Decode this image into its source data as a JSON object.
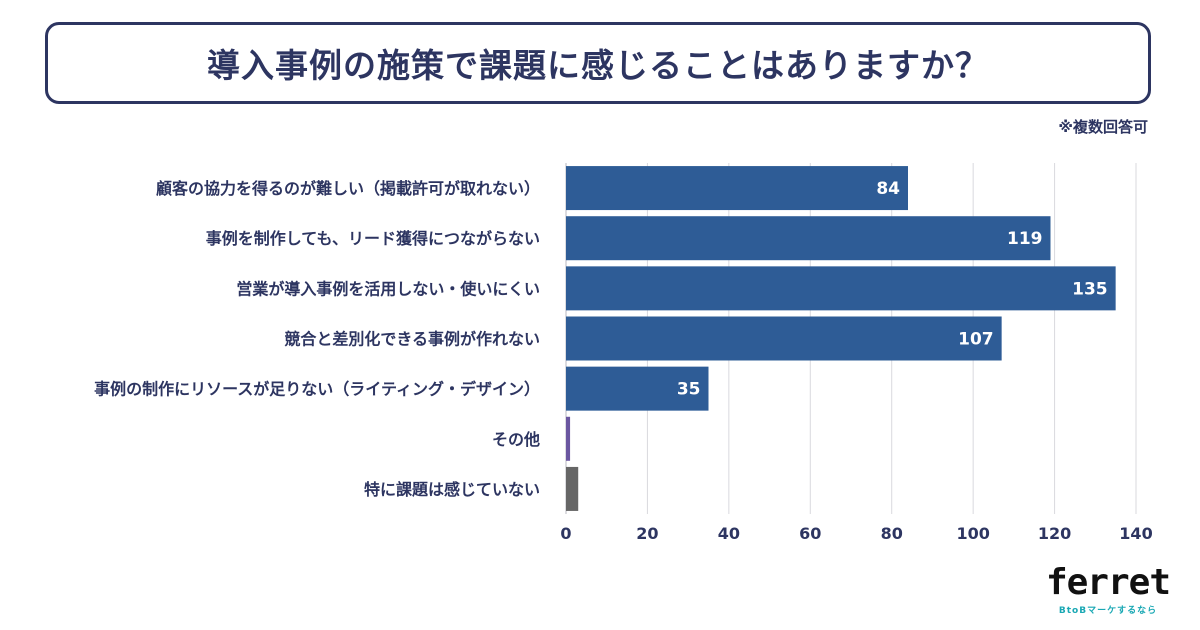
{
  "title": "導入事例の施策で課題に感じることはありますか？",
  "note": "※複数回答可",
  "chart_data": {
    "type": "bar",
    "orientation": "horizontal",
    "categories": [
      "顧客の協力を得るのが難しい（掲載許可が取れない）",
      "事例を制作しても、リード獲得につながらない",
      "営業が導入事例を活用しない・使いにくい",
      "競合と差別化できる事例が作れない",
      "事例の制作にリソースが足りない（ライティング・デザイン）",
      "その他",
      "特に課題は感じていない"
    ],
    "values": [
      84,
      119,
      135,
      107,
      35,
      1,
      3
    ],
    "value_labels": [
      "84",
      "119",
      "135",
      "107",
      "35",
      "",
      ""
    ],
    "colors": [
      "#2e5c96",
      "#2e5c96",
      "#2e5c96",
      "#2e5c96",
      "#2e5c96",
      "#6a56a0",
      "#666666"
    ],
    "xlim": [
      0,
      140
    ],
    "xticks": [
      0,
      20,
      40,
      60,
      80,
      100,
      120,
      140
    ],
    "grid": true
  },
  "logo": {
    "main": "ferret",
    "sub": "BtoBマーケするなら"
  }
}
